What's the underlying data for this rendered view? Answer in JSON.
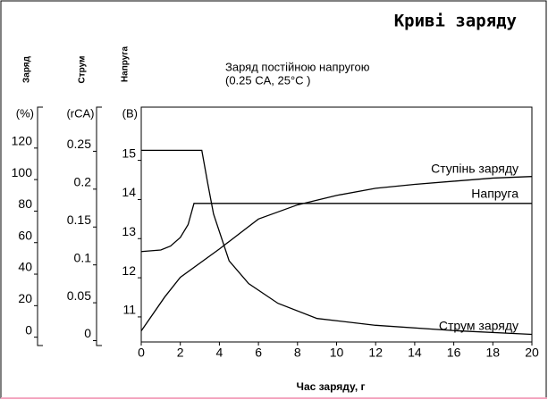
{
  "chart_data": {
    "type": "line",
    "title": "Криві заряду",
    "annotation": [
      "Заряд постійною напругою",
      "(0.25 CA, 25°C )"
    ],
    "xlabel": "Час заряду, г",
    "xlim": [
      0,
      20
    ],
    "xticks": [
      0,
      2,
      4,
      6,
      8,
      10,
      12,
      14,
      16,
      18,
      20
    ],
    "axes": [
      {
        "name": "Заряд",
        "unit": "(%)",
        "lim": [
          -7,
          142
        ],
        "ticks": [
          0,
          20,
          40,
          60,
          80,
          100,
          120
        ]
      },
      {
        "name": "Струм",
        "unit": "(rCA)",
        "lim": [
          -0.01,
          0.3
        ],
        "ticks": [
          0,
          0.05,
          0.1,
          0.15,
          0.2,
          0.25
        ]
      },
      {
        "name": "Напруга",
        "unit": "(B)",
        "lim": [
          10.2,
          16.2
        ],
        "ticks": [
          11,
          12,
          13,
          14,
          15
        ]
      }
    ],
    "series": [
      {
        "name": "Ступінь заряду",
        "axis": 0,
        "color": "#000000",
        "x": [
          0,
          1.2,
          2,
          4,
          6,
          8,
          10,
          12,
          14,
          16,
          18,
          20
        ],
        "values": [
          0,
          21.5,
          34,
          52,
          71,
          80,
          86,
          90.5,
          93,
          95,
          97,
          98
        ]
      },
      {
        "name": "Напруга",
        "axis": 2,
        "color": "#000000",
        "x": [
          0,
          1,
          1.5,
          2,
          2.4,
          2.7,
          20
        ],
        "values": [
          12.51,
          12.55,
          12.65,
          12.87,
          13.2,
          13.74,
          13.74
        ]
      },
      {
        "name": "Струм заряду",
        "axis": 1,
        "color": "#000000",
        "x": [
          0,
          3.1,
          3.4,
          3.7,
          4.5,
          5.5,
          7,
          9,
          12,
          16,
          20
        ],
        "values": [
          0.243,
          0.243,
          0.2,
          0.159,
          0.097,
          0.067,
          0.041,
          0.021,
          0.012,
          0.005,
          0
        ]
      }
    ]
  }
}
